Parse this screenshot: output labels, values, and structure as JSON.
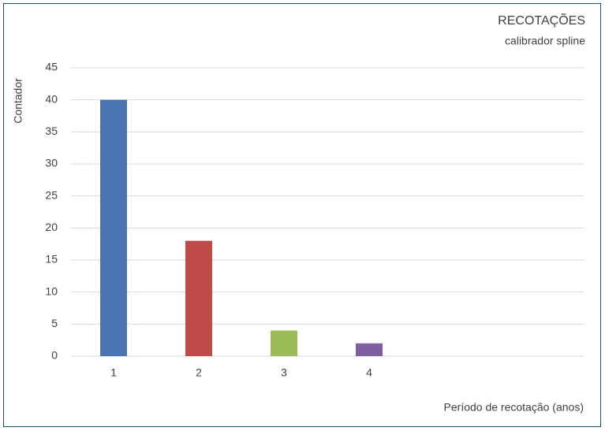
{
  "chart_data": {
    "type": "bar",
    "title": "RECOTAÇÕES",
    "subtitle": "calibrador spline",
    "y_label": "Contador",
    "x_label": "Período de recotação (anos)",
    "categories": [
      "1",
      "2",
      "3",
      "4"
    ],
    "values": [
      40,
      18,
      4,
      2
    ],
    "colors": [
      "#4a74b4",
      "#be4b48",
      "#9bbb59",
      "#7f5fa0"
    ],
    "ylim": [
      0,
      45
    ],
    "yticks": [
      0,
      5,
      10,
      15,
      20,
      25,
      30,
      35,
      40,
      45
    ],
    "grid": true
  }
}
